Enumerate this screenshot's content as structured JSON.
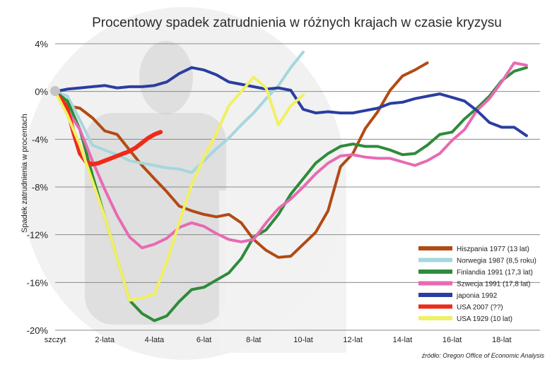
{
  "chart_data": {
    "type": "line",
    "title": "Procentowy spadek zatrudnienia w różnych krajach w czasie kryzysu",
    "ylabel": "Spadek zatrudnienia w procentach",
    "xlabel": "",
    "source": "źródło: Oregon Office of Economic Analysis",
    "x_ticks": [
      {
        "x": 0,
        "label": "szczyt"
      },
      {
        "x": 2,
        "label": "2-lata"
      },
      {
        "x": 4,
        "label": "4-lata"
      },
      {
        "x": 6,
        "label": "6-lat"
      },
      {
        "x": 8,
        "label": "8-lat"
      },
      {
        "x": 10,
        "label": "10-lat"
      },
      {
        "x": 12,
        "label": "12-lat"
      },
      {
        "x": 14,
        "label": "14-lat"
      },
      {
        "x": 16,
        "label": "16-lat"
      },
      {
        "x": 18,
        "label": "18-lat"
      }
    ],
    "y_ticks": [
      {
        "y": 4,
        "label": "4%"
      },
      {
        "y": 0,
        "label": "0%"
      },
      {
        "y": -4,
        "label": "-4%"
      },
      {
        "y": -8,
        "label": "-8%"
      },
      {
        "y": -12,
        "label": "-12%"
      },
      {
        "y": -16,
        "label": "-16%"
      },
      {
        "y": -20,
        "label": "-20%"
      }
    ],
    "xlim": [
      -0.2,
      19.5
    ],
    "ylim": [
      -20,
      4
    ],
    "grid": "horizontal",
    "legend_position": "bottom-right",
    "series": [
      {
        "name": "Hiszpania 1977 (13 lat)",
        "color": "#b24a14",
        "x": [
          0,
          0.5,
          1,
          1.5,
          2,
          2.5,
          3,
          3.5,
          4,
          4.5,
          5,
          5.5,
          6,
          6.5,
          7,
          7.5,
          8,
          8.5,
          9,
          9.5,
          10,
          10.5,
          11,
          11.5,
          12,
          12.5,
          13,
          13.5,
          14,
          14.5,
          15
        ],
        "y": [
          0,
          -1.2,
          -1.4,
          -2.2,
          -3.3,
          -3.6,
          -4.9,
          -6.2,
          -7.3,
          -8.4,
          -9.6,
          -10.0,
          -10.3,
          -10.5,
          -10.3,
          -11.0,
          -12.4,
          -13.3,
          -13.9,
          -13.8,
          -12.8,
          -11.8,
          -10.0,
          -6.3,
          -5.2,
          -3.1,
          -1.7,
          0.1,
          1.3,
          1.8,
          2.4
        ]
      },
      {
        "name": "Norwegia 1987 (8,5 roku)",
        "color": "#a5d7dc",
        "x": [
          0,
          0.5,
          1,
          1.5,
          2,
          2.5,
          3,
          3.5,
          4,
          4.5,
          5,
          5.5,
          6,
          6.5,
          7,
          7.5,
          8,
          8.5,
          9,
          9.5,
          10
        ],
        "y": [
          0,
          -0.4,
          -2.4,
          -4.5,
          -4.9,
          -5.3,
          -5.8,
          -6.0,
          -6.2,
          -6.4,
          -6.5,
          -6.8,
          -5.8,
          -4.8,
          -3.9,
          -2.8,
          -1.8,
          -0.6,
          0.5,
          2.0,
          3.3
        ]
      },
      {
        "name": "Finlandia 1991 (17,3 lat)",
        "color": "#2e8b3a",
        "x": [
          0,
          0.5,
          1,
          1.5,
          2,
          2.5,
          3,
          3.5,
          4,
          4.5,
          5,
          5.5,
          6,
          6.5,
          7,
          7.5,
          8,
          8.5,
          9,
          9.5,
          10,
          10.5,
          11,
          11.5,
          12,
          12.5,
          13,
          13.5,
          14,
          14.5,
          15,
          15.5,
          16,
          16.5,
          17,
          17.5,
          18,
          18.5,
          19
        ],
        "y": [
          0,
          -0.8,
          -3.2,
          -7.0,
          -10.5,
          -14.0,
          -17.5,
          -18.6,
          -19.2,
          -18.8,
          -17.6,
          -16.6,
          -16.4,
          -15.8,
          -15.2,
          -14.0,
          -12.2,
          -11.6,
          -10.3,
          -8.6,
          -7.3,
          -6.0,
          -5.2,
          -4.6,
          -4.4,
          -4.6,
          -4.6,
          -4.9,
          -5.3,
          -5.2,
          -4.5,
          -3.6,
          -3.4,
          -2.3,
          -1.4,
          -0.4,
          0.9,
          1.7,
          2.0
        ]
      },
      {
        "name": "Szwecja 1991 (17,8 lat)",
        "color": "#e86ab2",
        "x": [
          0,
          0.5,
          1,
          1.5,
          2,
          2.5,
          3,
          3.5,
          4,
          4.5,
          5,
          5.5,
          6,
          6.5,
          7,
          7.5,
          8,
          8.5,
          9,
          9.5,
          10,
          10.5,
          11,
          11.5,
          12,
          12.5,
          13,
          13.5,
          14,
          14.5,
          15,
          15.5,
          16,
          16.5,
          17,
          17.5,
          18,
          18.5,
          19
        ],
        "y": [
          0,
          -1.6,
          -3.2,
          -5.8,
          -8.2,
          -10.4,
          -12.2,
          -13.1,
          -12.8,
          -12.3,
          -11.4,
          -11.0,
          -11.3,
          -11.9,
          -12.4,
          -12.6,
          -12.4,
          -11.0,
          -9.8,
          -9.0,
          -8.0,
          -6.9,
          -6.0,
          -5.4,
          -5.3,
          -5.5,
          -5.6,
          -5.6,
          -5.9,
          -6.2,
          -5.8,
          -5.2,
          -4.1,
          -3.2,
          -1.6,
          -0.6,
          0.8,
          2.4,
          2.2
        ]
      },
      {
        "name": "japonia 1992",
        "color": "#2a3ea0",
        "x": [
          0,
          0.5,
          1,
          1.5,
          2,
          2.5,
          3,
          3.5,
          4,
          4.5,
          5,
          5.5,
          6,
          6.5,
          7,
          7.5,
          8,
          8.5,
          9,
          9.5,
          10,
          10.5,
          11,
          11.5,
          12,
          12.5,
          13,
          13.5,
          14,
          14.5,
          15,
          15.5,
          16,
          16.5,
          17,
          17.5,
          18,
          18.5,
          19
        ],
        "y": [
          0,
          0.2,
          0.3,
          0.4,
          0.5,
          0.3,
          0.4,
          0.4,
          0.5,
          0.8,
          1.5,
          2.0,
          1.8,
          1.4,
          0.8,
          0.6,
          0.4,
          0.2,
          0.3,
          0.1,
          -1.5,
          -1.8,
          -1.7,
          -1.8,
          -1.8,
          -1.6,
          -1.4,
          -1.0,
          -0.9,
          -0.6,
          -0.4,
          -0.2,
          -0.5,
          -0.8,
          -1.6,
          -2.6,
          -3.0,
          -3.0,
          -3.7
        ]
      },
      {
        "name": "USA 2007 (??)",
        "color": "#ee2b1b",
        "x": [
          0,
          0.25,
          0.5,
          0.75,
          1,
          1.25,
          1.5,
          1.75,
          2,
          2.25,
          2.5,
          2.75,
          3,
          3.25,
          3.5,
          3.75,
          4,
          4.25
        ],
        "y": [
          0,
          -0.7,
          -1.5,
          -3.5,
          -5.2,
          -5.9,
          -6.1,
          -6.0,
          -5.8,
          -5.6,
          -5.4,
          -5.2,
          -5.0,
          -4.7,
          -4.3,
          -3.9,
          -3.6,
          -3.4
        ]
      },
      {
        "name": "USA 1929 (10 lat)",
        "color": "#f0f064",
        "x": [
          0,
          0.5,
          1,
          1.5,
          2,
          2.5,
          3,
          3.5,
          4,
          4.5,
          5,
          5.5,
          6,
          6.5,
          7,
          7.5,
          8,
          8.5,
          9,
          9.5,
          10
        ],
        "y": [
          0,
          -2.0,
          -4.5,
          -7.5,
          -10.5,
          -14.0,
          -17.5,
          -17.3,
          -17.0,
          -14.3,
          -11.0,
          -7.8,
          -5.5,
          -3.5,
          -1.2,
          0.0,
          1.2,
          0.3,
          -2.8,
          -1.2,
          -0.3
        ]
      }
    ]
  }
}
